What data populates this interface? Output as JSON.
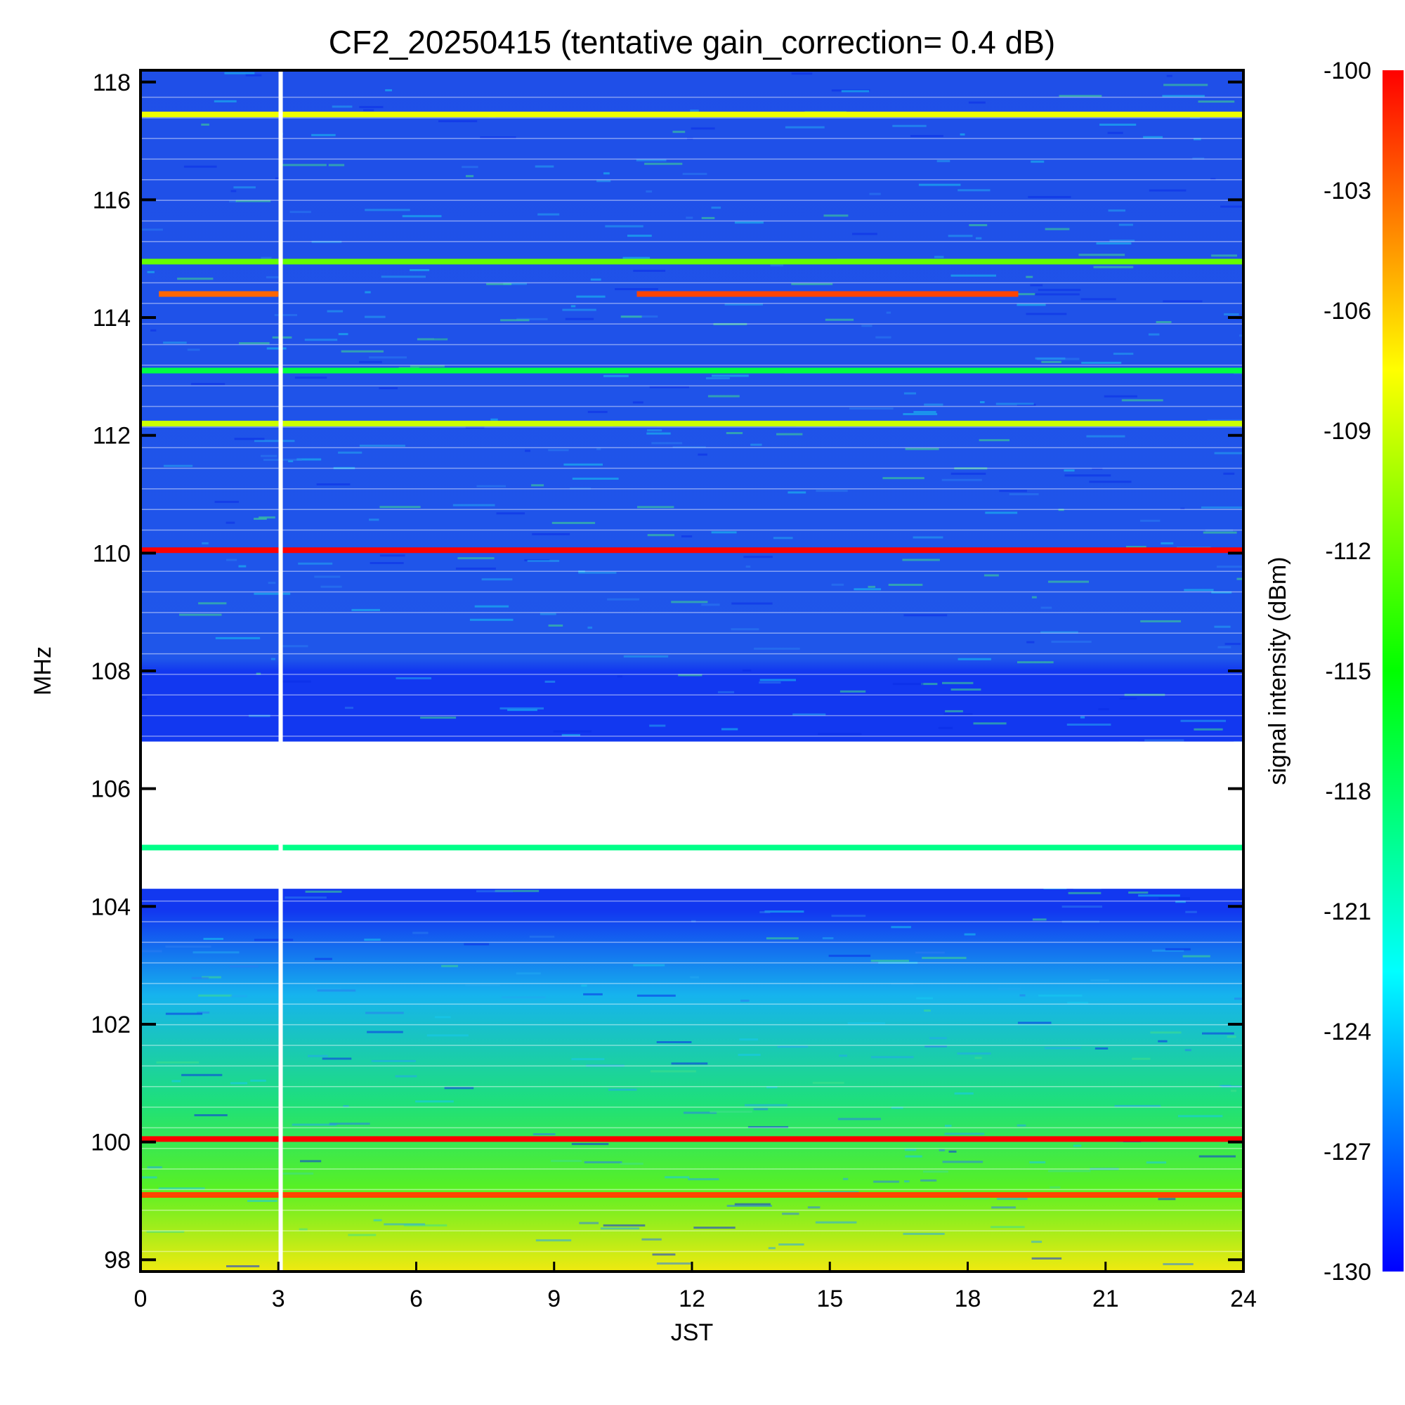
{
  "chart_data": {
    "type": "heatmap",
    "title": "CF2_20250415 (tentative gain_correction=  0.4 dB)",
    "xlabel": "JST",
    "ylabel": "MHz",
    "xlim": [
      0,
      24
    ],
    "ylim": [
      97.8,
      118.2
    ],
    "x_ticks": [
      "0",
      "3",
      "6",
      "9",
      "12",
      "15",
      "18",
      "21",
      "24"
    ],
    "x_tick_values": [
      0,
      3,
      6,
      9,
      12,
      15,
      18,
      21,
      24
    ],
    "y_ticks": [
      "98",
      "100",
      "102",
      "104",
      "106",
      "108",
      "110",
      "112",
      "114",
      "116",
      "118"
    ],
    "y_tick_values": [
      98,
      100,
      102,
      104,
      106,
      108,
      110,
      112,
      114,
      116,
      118
    ],
    "colorbar": {
      "label": "signal intensity (dBm)",
      "range": [
        -130,
        -100
      ],
      "ticks": [
        "-100",
        "-103",
        "-106",
        "-109",
        "-112",
        "-115",
        "-118",
        "-121",
        "-124",
        "-127",
        "-130"
      ],
      "tick_values": [
        -100,
        -103,
        -106,
        -109,
        -112,
        -115,
        -118,
        -121,
        -124,
        -127,
        -130
      ],
      "colormap": "rainbow (blue → cyan → green → yellow → red)"
    },
    "data_gap": {
      "x": 3.05,
      "description": "no data"
    },
    "signal_bands": [
      {
        "freq_mhz": 117.45,
        "level_dbm": -108,
        "x_range": [
          0,
          24
        ]
      },
      {
        "freq_mhz": 114.95,
        "level_dbm": -112,
        "x_range": [
          0,
          24
        ]
      },
      {
        "freq_mhz": 114.4,
        "level_dbm": -103,
        "x_range": [
          0.4,
          3.0
        ]
      },
      {
        "freq_mhz": 114.4,
        "level_dbm": -102,
        "x_range": [
          10.8,
          19.1
        ]
      },
      {
        "freq_mhz": 113.1,
        "level_dbm": -117,
        "x_range": [
          0,
          24
        ]
      },
      {
        "freq_mhz": 112.2,
        "level_dbm": -109,
        "x_range": [
          0,
          24
        ]
      },
      {
        "freq_mhz": 110.05,
        "level_dbm": -100,
        "x_range": [
          0,
          24
        ]
      },
      {
        "freq_mhz": 105.0,
        "level_dbm": -119,
        "x_range": [
          0,
          24
        ]
      },
      {
        "freq_mhz": 100.05,
        "level_dbm": -100,
        "x_range": [
          0,
          24
        ]
      },
      {
        "freq_mhz": 99.1,
        "level_dbm": -102,
        "x_range": [
          0,
          24
        ]
      }
    ],
    "background_level_dbm": [
      {
        "freq_range_mhz": [
          108,
          118
        ],
        "level_dbm": -127
      },
      {
        "freq_range_mhz": [
          103.5,
          108
        ],
        "level_dbm": -129
      },
      {
        "freq_range_mhz": [
          102,
          103.5
        ],
        "level_dbm": -124
      },
      {
        "freq_range_mhz": [
          100,
          102
        ],
        "level_dbm": -119
      },
      {
        "freq_range_mhz": [
          97.8,
          100
        ],
        "level_dbm": -110
      }
    ],
    "blank_region_mhz": [
      104.3,
      106.8
    ],
    "grid": false
  }
}
